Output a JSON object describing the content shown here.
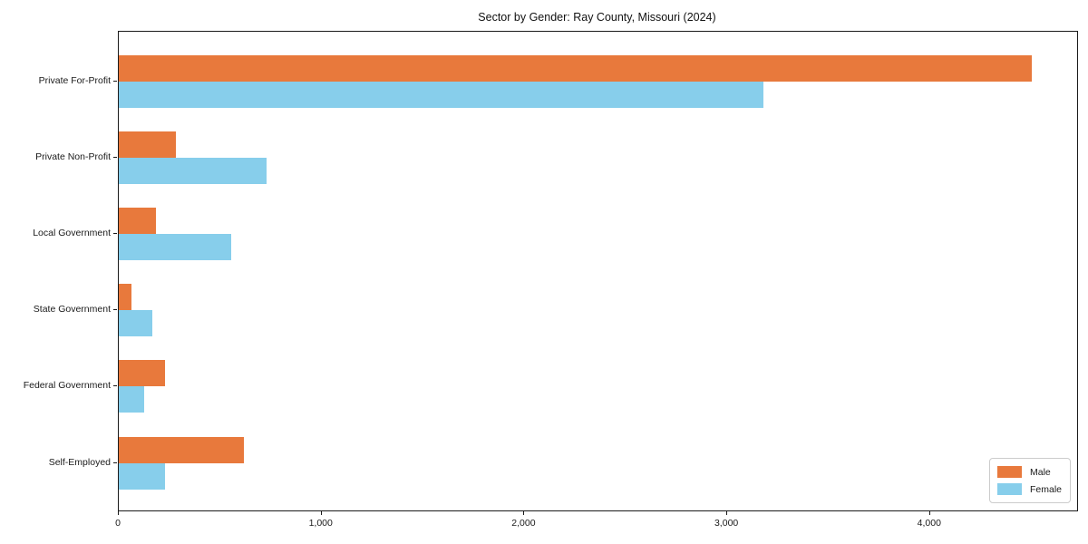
{
  "chart_data": {
    "type": "bar",
    "orientation": "horizontal",
    "title": "Sector by Gender: Ray County, Missouri (2024)",
    "categories": [
      "Private For-Profit",
      "Private Non-Profit",
      "Local Government",
      "State Government",
      "Federal Government",
      "Self-Employed"
    ],
    "series": [
      {
        "name": "Male",
        "color": "#e8793c",
        "values": [
          4500,
          280,
          185,
          62,
          230,
          615
        ]
      },
      {
        "name": "Female",
        "color": "#87ceeb",
        "values": [
          3180,
          730,
          555,
          165,
          125,
          230
        ]
      }
    ],
    "xlabel": "",
    "ylabel": "",
    "xlim": [
      0,
      4725
    ],
    "x_ticks": [
      {
        "value": 0,
        "label": "0"
      },
      {
        "value": 1000,
        "label": "1,000"
      },
      {
        "value": 2000,
        "label": "2,000"
      },
      {
        "value": 3000,
        "label": "3,000"
      },
      {
        "value": 4000,
        "label": "4,000"
      }
    ],
    "grid": false,
    "legend_position": "lower right"
  },
  "colors": {
    "male": "#e8793c",
    "female": "#87ceeb",
    "spine": "#1a1a1a",
    "legend_border": "#cccccc",
    "background": "#ffffff"
  }
}
